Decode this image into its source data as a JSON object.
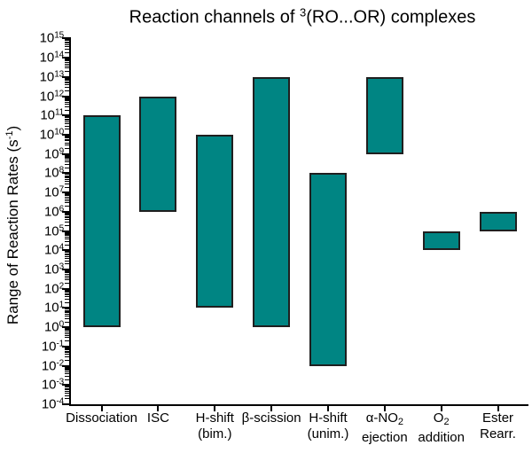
{
  "title": {
    "text": "Reaction channels of ³(RO...OR) complexes",
    "segments": [
      {
        "t": "Reaction channels of "
      },
      {
        "t": "3",
        "style": "sup"
      },
      {
        "t": "(RO...OR) complexes"
      }
    ]
  },
  "y_axis": {
    "label": "Range of Reaction Rates (s⁻¹)",
    "label_segments": [
      {
        "t": "Range of Reaction Rates (s"
      },
      {
        "t": "-1",
        "style": "sup"
      },
      {
        "t": ")"
      }
    ],
    "tick_base": "10",
    "min_exp": -4,
    "max_exp": 15
  },
  "chart_data": {
    "type": "bar",
    "subtype": "floating-range-bars",
    "title": "Reaction channels of ³(RO...OR) complexes",
    "xlabel": "",
    "ylabel": "Range of Reaction Rates (s⁻¹)",
    "yscale": "log",
    "ylim": [
      0.0001,
      1000000000000000.0
    ],
    "ytick_exponent_min": -4,
    "ytick_exponent_max": 15,
    "grid": false,
    "legend": false,
    "bar_color": "#008583",
    "bar_border_color": "#1f1f1f",
    "categories": [
      "Dissociation",
      "ISC",
      "H-shift (bim.)",
      "β-scission",
      "H-shift (unim.)",
      "α-NO₂ ejection",
      "O₂ addition",
      "Ester Rearr."
    ],
    "bars": [
      {
        "name": "Dissociation",
        "low": 1,
        "high": 100000000000.0,
        "low_exp": 0,
        "high_exp": 11,
        "label_lines": [
          [
            {
              "t": "Dissociation"
            }
          ]
        ]
      },
      {
        "name": "ISC",
        "low": 1000000.0,
        "high": 1000000000000.0,
        "low_exp": 6,
        "high_exp": 12,
        "label_lines": [
          [
            {
              "t": "ISC"
            }
          ]
        ]
      },
      {
        "name": "H-shift (bim.)",
        "low": 10,
        "high": 10000000000.0,
        "low_exp": 1,
        "high_exp": 10,
        "label_lines": [
          [
            {
              "t": "H-shift"
            }
          ],
          [
            {
              "t": "(bim.)"
            }
          ]
        ]
      },
      {
        "name": "β-scission",
        "low": 1,
        "high": 10000000000000.0,
        "low_exp": 0,
        "high_exp": 13,
        "label_lines": [
          [
            {
              "t": "β-scission"
            }
          ]
        ]
      },
      {
        "name": "H-shift (unim.)",
        "low": 0.01,
        "high": 100000000.0,
        "low_exp": -2,
        "high_exp": 8,
        "label_lines": [
          [
            {
              "t": "H-shift"
            }
          ],
          [
            {
              "t": "(unim.)"
            }
          ]
        ]
      },
      {
        "name": "α-NO₂ ejection",
        "low": 1000000000.0,
        "high": 10000000000000.0,
        "low_exp": 9,
        "high_exp": 13,
        "label_lines": [
          [
            {
              "t": "α-NO"
            },
            {
              "t": "2",
              "style": "sub"
            }
          ],
          [
            {
              "t": "ejection"
            }
          ]
        ]
      },
      {
        "name": "O₂ addition",
        "low": 10000.0,
        "high": 100000.0,
        "low_exp": 4,
        "high_exp": 5,
        "label_lines": [
          [
            {
              "t": "O"
            },
            {
              "t": "2",
              "style": "sub"
            }
          ],
          [
            {
              "t": "addition"
            }
          ]
        ]
      },
      {
        "name": "Ester Rearr.",
        "low": 100000.0,
        "high": 1000000.0,
        "low_exp": 5,
        "high_exp": 6,
        "label_lines": [
          [
            {
              "t": "Ester"
            }
          ],
          [
            {
              "t": "Rearr."
            }
          ]
        ]
      }
    ]
  }
}
